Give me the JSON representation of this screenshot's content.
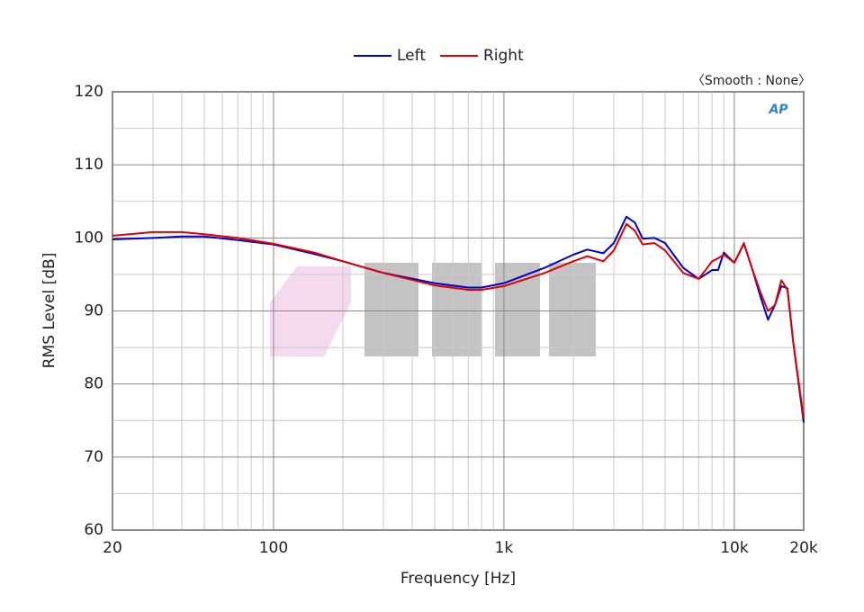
{
  "chart_data": {
    "type": "line",
    "xlabel": "Frequency [Hz]",
    "ylabel": "RMS Level [dB]",
    "annotation": "〈Smooth : None〉",
    "logo": "AP",
    "log_x": true,
    "grid": true,
    "legend": "top",
    "x": [
      20,
      30,
      40,
      50,
      70,
      100,
      150,
      200,
      300,
      500,
      700,
      800,
      1000,
      1500,
      2000,
      2300,
      2700,
      3000,
      3400,
      3700,
      4000,
      4500,
      5000,
      6000,
      7000,
      7500,
      8000,
      8500,
      9000,
      10000,
      11000,
      12000,
      13000,
      14000,
      15000,
      16000,
      17000,
      18000,
      20000
    ],
    "series": [
      {
        "name": "Left",
        "color": "#0000c8",
        "values": [
          99.8,
          100.0,
          100.2,
          100.2,
          99.7,
          99.1,
          97.8,
          96.8,
          95.2,
          93.8,
          93.2,
          93.2,
          93.8,
          95.9,
          97.7,
          98.4,
          97.9,
          99.3,
          102.9,
          102.1,
          99.9,
          100.0,
          99.3,
          95.9,
          94.4,
          95.0,
          95.6,
          95.6,
          98.0,
          96.6,
          99.2,
          95.6,
          91.9,
          88.8,
          90.8,
          93.4,
          93.1,
          85.8,
          74.7
        ]
      },
      {
        "name": "Right",
        "color": "#e00000",
        "values": [
          100.3,
          100.8,
          100.8,
          100.5,
          100.0,
          99.2,
          98.0,
          96.8,
          95.2,
          93.5,
          92.9,
          92.9,
          93.4,
          95.2,
          96.8,
          97.5,
          96.8,
          98.3,
          101.9,
          101.0,
          99.1,
          99.3,
          98.3,
          95.2,
          94.4,
          95.6,
          96.8,
          97.2,
          97.7,
          96.6,
          99.3,
          95.6,
          92.5,
          90.0,
          90.8,
          94.2,
          92.9,
          85.8,
          75.3
        ]
      }
    ],
    "xlim": [
      20,
      20000
    ],
    "xticks": [
      20,
      100,
      {
        "value": 1000,
        "label": "1k"
      },
      {
        "value": 10000,
        "label": "10k"
      },
      {
        "value": 20000,
        "label": "20k"
      }
    ],
    "ylim": [
      60,
      120
    ],
    "yticks": [
      60,
      70,
      80,
      90,
      100,
      110,
      120
    ]
  }
}
